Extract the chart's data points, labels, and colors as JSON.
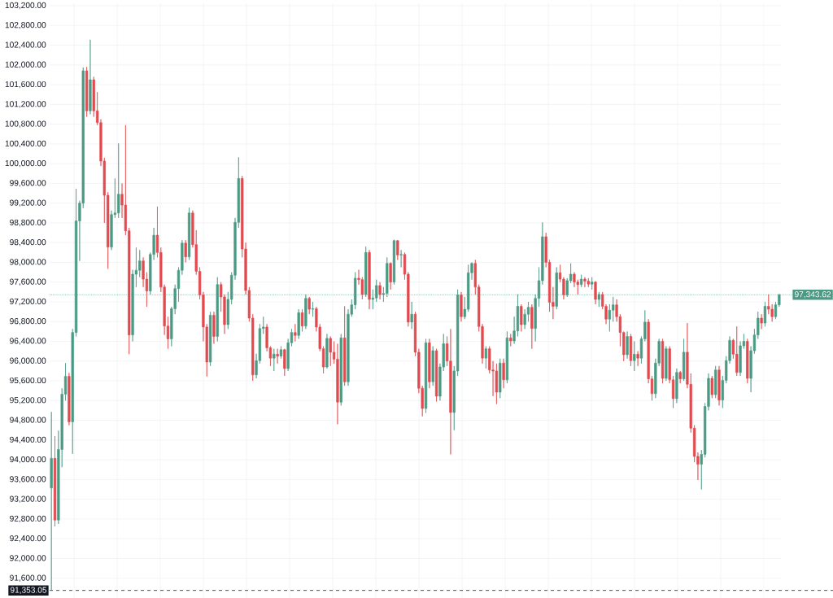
{
  "chart_data": {
    "type": "candlestick",
    "categories": [
      null,
      null,
      null,
      null,
      null,
      null,
      null,
      null,
      null,
      null,
      null,
      null,
      null,
      null,
      null,
      null,
      null,
      null,
      null,
      null,
      null,
      null,
      null,
      null,
      null,
      null,
      null,
      null,
      null,
      null,
      null,
      null,
      null,
      null,
      null,
      null,
      null,
      null,
      null,
      null,
      null,
      null,
      null,
      null,
      null,
      null,
      null,
      null,
      null,
      null,
      null,
      null,
      null,
      null,
      null,
      null,
      null,
      null,
      null,
      null,
      null,
      null,
      null,
      null,
      null,
      null,
      null,
      null,
      null,
      null,
      null,
      null,
      null,
      null,
      null,
      null,
      null,
      null,
      null,
      null,
      null,
      null,
      null,
      null,
      null,
      null,
      null,
      null,
      null,
      null,
      null,
      null,
      null,
      null,
      null,
      null,
      null,
      null,
      null,
      null,
      null,
      null,
      null,
      null,
      null,
      null,
      null,
      null,
      null,
      null,
      null,
      null,
      null,
      null,
      null,
      null,
      null,
      null,
      null,
      null,
      null,
      null,
      null,
      null,
      null,
      null,
      null,
      null,
      null,
      null,
      null,
      null,
      null,
      null,
      null,
      null,
      null,
      null,
      null,
      null,
      null,
      null,
      null,
      null,
      null,
      null,
      null,
      null,
      null,
      null,
      null,
      null,
      null,
      null,
      null,
      null,
      null,
      null,
      null,
      null,
      null,
      null,
      null,
      null,
      null,
      null,
      null,
      null,
      null,
      null,
      null,
      null,
      null,
      null,
      null,
      null,
      null,
      null,
      null,
      null,
      null,
      null,
      null,
      null,
      null,
      null,
      null,
      null,
      null,
      null,
      null,
      null,
      null,
      null,
      null,
      null,
      null,
      null,
      null,
      null,
      null,
      null,
      null,
      null,
      null,
      null,
      null
    ],
    "ohlc": [
      [
        93430,
        94970,
        91360,
        94030
      ],
      [
        94030,
        94480,
        92650,
        92780
      ],
      [
        92780,
        94590,
        92700,
        94210
      ],
      [
        94210,
        95450,
        93850,
        95330
      ],
      [
        95330,
        95960,
        95200,
        95690
      ],
      [
        95690,
        95760,
        94700,
        94770
      ],
      [
        94770,
        96650,
        94120,
        96580
      ],
      [
        96580,
        99490,
        96500,
        98840
      ],
      [
        98840,
        99250,
        98030,
        99200
      ],
      [
        99200,
        101950,
        99100,
        101880
      ],
      [
        101880,
        101960,
        100950,
        101070
      ],
      [
        101070,
        102510,
        101000,
        101700
      ],
      [
        101700,
        101760,
        100950,
        101070
      ],
      [
        101070,
        101450,
        100780,
        100830
      ],
      [
        100830,
        100900,
        99950,
        100050
      ],
      [
        100050,
        100120,
        98800,
        99360
      ],
      [
        99360,
        99420,
        97870,
        98310
      ],
      [
        98310,
        99050,
        98250,
        98970
      ],
      [
        98970,
        99700,
        98900,
        99000
      ],
      [
        99000,
        100410,
        98900,
        99380
      ],
      [
        99380,
        99600,
        98900,
        99160
      ],
      [
        99160,
        100780,
        98550,
        98640
      ],
      [
        98640,
        98700,
        96140,
        96530
      ],
      [
        96530,
        97850,
        96400,
        97760
      ],
      [
        97760,
        98300,
        97500,
        97840
      ],
      [
        97840,
        98250,
        97700,
        98030
      ],
      [
        98030,
        98100,
        97500,
        97660
      ],
      [
        97660,
        97800,
        97100,
        97420
      ],
      [
        97420,
        98200,
        97350,
        98160
      ],
      [
        98160,
        98700,
        98050,
        98550
      ],
      [
        98550,
        99130,
        98100,
        98200
      ],
      [
        98200,
        98300,
        97400,
        97500
      ],
      [
        97500,
        97550,
        96530,
        96710
      ],
      [
        96710,
        96900,
        96250,
        96450
      ],
      [
        96450,
        97100,
        96300,
        97060
      ],
      [
        97060,
        97550,
        96950,
        97470
      ],
      [
        97470,
        97900,
        97200,
        97840
      ],
      [
        97840,
        98450,
        97750,
        98390
      ],
      [
        98390,
        98450,
        98000,
        98110
      ],
      [
        98110,
        99110,
        98050,
        99000
      ],
      [
        99000,
        99050,
        98300,
        98360
      ],
      [
        98360,
        98650,
        97750,
        97820
      ],
      [
        97820,
        97900,
        97250,
        97340
      ],
      [
        97340,
        97400,
        96400,
        96690
      ],
      [
        96690,
        96750,
        95690,
        95980
      ],
      [
        95980,
        97000,
        95900,
        96930
      ],
      [
        96930,
        97000,
        96350,
        96500
      ],
      [
        96500,
        97700,
        96400,
        97550
      ],
      [
        97550,
        97600,
        97000,
        97300
      ],
      [
        97300,
        97350,
        96550,
        96740
      ],
      [
        96740,
        97400,
        96650,
        97250
      ],
      [
        97250,
        97800,
        97150,
        97740
      ],
      [
        97740,
        98900,
        97650,
        98810
      ],
      [
        98810,
        100130,
        98700,
        99700
      ],
      [
        99700,
        99750,
        98100,
        98270
      ],
      [
        98270,
        98400,
        97350,
        97430
      ],
      [
        97430,
        97500,
        96800,
        96870
      ],
      [
        96870,
        96950,
        95600,
        95720
      ],
      [
        95720,
        96150,
        95650,
        96010
      ],
      [
        96010,
        96750,
        95950,
        96660
      ],
      [
        96660,
        96900,
        96550,
        96690
      ],
      [
        96690,
        96750,
        96200,
        96270
      ],
      [
        96270,
        96300,
        95900,
        96060
      ],
      [
        96060,
        96250,
        95800,
        96140
      ],
      [
        96140,
        96250,
        95950,
        96100
      ],
      [
        96100,
        96300,
        96050,
        96230
      ],
      [
        96230,
        96250,
        95700,
        95850
      ],
      [
        95850,
        96450,
        95800,
        96370
      ],
      [
        96370,
        96650,
        96300,
        96580
      ],
      [
        96580,
        96750,
        96400,
        96520
      ],
      [
        96520,
        97050,
        96450,
        96980
      ],
      [
        96980,
        97050,
        96600,
        96710
      ],
      [
        96710,
        97350,
        96650,
        97270
      ],
      [
        97270,
        97300,
        96950,
        97050
      ],
      [
        97050,
        97200,
        96900,
        97060
      ],
      [
        97060,
        97100,
        96600,
        96690
      ],
      [
        96690,
        96750,
        96200,
        96250
      ],
      [
        96250,
        96300,
        95750,
        95880
      ],
      [
        95880,
        96550,
        95850,
        96460
      ],
      [
        96460,
        96500,
        95900,
        96180
      ],
      [
        96180,
        96400,
        95950,
        96040
      ],
      [
        96040,
        96350,
        94720,
        95170
      ],
      [
        95170,
        96550,
        95100,
        96470
      ],
      [
        96470,
        97110,
        95500,
        95580
      ],
      [
        95580,
        97050,
        95500,
        96950
      ],
      [
        96950,
        97250,
        96900,
        97140
      ],
      [
        97140,
        97800,
        97050,
        97680
      ],
      [
        97680,
        97850,
        97550,
        97650
      ],
      [
        97650,
        97700,
        97250,
        97350
      ],
      [
        97350,
        98320,
        97300,
        98200
      ],
      [
        98200,
        98250,
        97050,
        97250
      ],
      [
        97250,
        97450,
        97050,
        97280
      ],
      [
        97280,
        97650,
        97200,
        97530
      ],
      [
        97530,
        97600,
        97250,
        97350
      ],
      [
        97350,
        97500,
        97200,
        97370
      ],
      [
        97370,
        98100,
        97300,
        97980
      ],
      [
        97980,
        98000,
        97450,
        97600
      ],
      [
        97600,
        98460,
        97550,
        98440
      ],
      [
        98440,
        98450,
        98050,
        98150
      ],
      [
        98150,
        98250,
        97900,
        98160
      ],
      [
        98160,
        98200,
        97650,
        97760
      ],
      [
        97760,
        97800,
        96700,
        96790
      ],
      [
        96790,
        97200,
        96650,
        96950
      ],
      [
        96950,
        97000,
        96100,
        96180
      ],
      [
        96180,
        96250,
        95350,
        95450
      ],
      [
        95450,
        95500,
        94880,
        95040
      ],
      [
        95040,
        96450,
        94950,
        96370
      ],
      [
        96370,
        96450,
        95450,
        95580
      ],
      [
        95580,
        96300,
        95500,
        96210
      ],
      [
        96210,
        96250,
        95180,
        95290
      ],
      [
        95290,
        95950,
        95200,
        95880
      ],
      [
        95880,
        96550,
        95800,
        96350
      ],
      [
        96350,
        96500,
        95900,
        96000
      ],
      [
        96000,
        96650,
        94110,
        94960
      ],
      [
        94960,
        95900,
        94600,
        95800
      ],
      [
        95800,
        97450,
        95700,
        97340
      ],
      [
        97340,
        97400,
        96800,
        96900
      ],
      [
        96900,
        97300,
        96850,
        97050
      ],
      [
        97050,
        97950,
        97000,
        97790
      ],
      [
        97790,
        98000,
        97650,
        97980
      ],
      [
        97980,
        98050,
        97350,
        97500
      ],
      [
        97500,
        97550,
        96600,
        96700
      ],
      [
        96700,
        96750,
        95950,
        96060
      ],
      [
        96060,
        96300,
        95850,
        96250
      ],
      [
        96250,
        96300,
        95750,
        95820
      ],
      [
        95820,
        96000,
        95290,
        95800
      ],
      [
        95800,
        95950,
        95130,
        95370
      ],
      [
        95370,
        96050,
        95250,
        95960
      ],
      [
        95960,
        96050,
        95450,
        95620
      ],
      [
        95620,
        96600,
        95550,
        96470
      ],
      [
        96470,
        96550,
        96300,
        96410
      ],
      [
        96410,
        96900,
        96350,
        96610
      ],
      [
        96610,
        97350,
        96500,
        97110
      ],
      [
        97110,
        97150,
        96600,
        96740
      ],
      [
        96740,
        97050,
        96650,
        96950
      ],
      [
        96950,
        97200,
        96800,
        97090
      ],
      [
        97090,
        97150,
        96250,
        96660
      ],
      [
        96660,
        97350,
        96400,
        97270
      ],
      [
        97270,
        97900,
        97100,
        97630
      ],
      [
        97630,
        98810,
        97550,
        98520
      ],
      [
        98520,
        98600,
        97900,
        98000
      ],
      [
        98000,
        98050,
        97000,
        97190
      ],
      [
        97190,
        97500,
        96850,
        97110
      ],
      [
        97110,
        97900,
        97050,
        97790
      ],
      [
        97790,
        97950,
        97600,
        97660
      ],
      [
        97660,
        97700,
        97250,
        97340
      ],
      [
        97340,
        97680,
        97300,
        97630
      ],
      [
        97630,
        97980,
        97580,
        97760
      ],
      [
        97760,
        97800,
        97500,
        97600
      ],
      [
        97600,
        97650,
        97350,
        97550
      ],
      [
        97550,
        97750,
        97500,
        97660
      ],
      [
        97660,
        97700,
        97500,
        97620
      ],
      [
        97620,
        97680,
        97500,
        97560
      ],
      [
        97560,
        97700,
        97450,
        97600
      ],
      [
        97600,
        97620,
        97150,
        97250
      ],
      [
        97250,
        97400,
        97100,
        97350
      ],
      [
        97350,
        97400,
        97050,
        97110
      ],
      [
        97110,
        97150,
        96750,
        96850
      ],
      [
        96850,
        97150,
        96600,
        97030
      ],
      [
        97030,
        97300,
        96800,
        97140
      ],
      [
        97140,
        97250,
        96800,
        96900
      ],
      [
        96900,
        96950,
        96300,
        96580
      ],
      [
        96580,
        96600,
        96000,
        96130
      ],
      [
        96130,
        96600,
        96050,
        96500
      ],
      [
        96500,
        96550,
        95900,
        96010
      ],
      [
        96010,
        96400,
        95800,
        96140
      ],
      [
        96140,
        96200,
        95900,
        96060
      ],
      [
        96060,
        96500,
        95950,
        96450
      ],
      [
        96450,
        97030,
        96400,
        96790
      ],
      [
        96790,
        96850,
        95550,
        95640
      ],
      [
        95640,
        95700,
        95200,
        95340
      ],
      [
        95340,
        96050,
        95250,
        95960
      ],
      [
        95960,
        96450,
        95900,
        96400
      ],
      [
        96400,
        96450,
        95550,
        95650
      ],
      [
        95650,
        96300,
        95600,
        96250
      ],
      [
        96250,
        96300,
        95550,
        95620
      ],
      [
        95620,
        95700,
        95050,
        95240
      ],
      [
        95240,
        95850,
        95150,
        95770
      ],
      [
        95770,
        95800,
        95550,
        95640
      ],
      [
        95640,
        96450,
        95600,
        96180
      ],
      [
        96180,
        96770,
        95450,
        95530
      ],
      [
        95530,
        95750,
        94550,
        94640
      ],
      [
        94640,
        94700,
        93950,
        94070
      ],
      [
        94070,
        94150,
        93590,
        93910
      ],
      [
        93910,
        94200,
        93400,
        94110
      ],
      [
        94110,
        95150,
        94050,
        95080
      ],
      [
        95080,
        95750,
        95000,
        95650
      ],
      [
        95650,
        95700,
        95250,
        95320
      ],
      [
        95320,
        95900,
        95250,
        95820
      ],
      [
        95820,
        95900,
        95100,
        95210
      ],
      [
        95210,
        95700,
        95050,
        95610
      ],
      [
        95610,
        96100,
        95550,
        96010
      ],
      [
        96010,
        96500,
        95950,
        96420
      ],
      [
        96420,
        96450,
        96050,
        96140
      ],
      [
        96140,
        96700,
        95700,
        95770
      ],
      [
        95770,
        96400,
        95700,
        96310
      ],
      [
        96310,
        96550,
        96250,
        96400
      ],
      [
        96400,
        96450,
        95550,
        95650
      ],
      [
        95650,
        96300,
        95370,
        96210
      ],
      [
        96210,
        96650,
        96150,
        96530
      ],
      [
        96530,
        97000,
        96450,
        96870
      ],
      [
        96870,
        96950,
        96650,
        96770
      ],
      [
        96770,
        97200,
        96700,
        97110
      ],
      [
        97110,
        97350,
        96950,
        97050
      ],
      [
        97050,
        97150,
        96800,
        96900
      ],
      [
        96900,
        97200,
        96850,
        97140
      ],
      [
        97140,
        97360,
        97100,
        97343.62
      ]
    ],
    "colors": [
      "#4a9a84",
      "#e24a4f",
      "#4a9a84",
      "#4a9a84",
      "#4a9a84",
      "#e24a4f",
      "#4a9a84",
      "#4a9a84",
      "#4a9a84",
      "#4a9a84",
      "#e24a4f",
      "#4a9a84",
      "#e24a4f",
      "#e24a4f",
      "#e24a4f",
      "#e24a4f",
      "#e24a4f",
      "#4a9a84",
      "#4a9a84",
      "#4a9a84",
      "#e24a4f",
      "#e24a4f",
      "#e24a4f",
      "#4a9a84",
      "#4a9a84",
      "#4a9a84",
      "#e24a4f",
      "#e24a4f",
      "#4a9a84",
      "#4a9a84",
      "#e24a4f",
      "#e24a4f",
      "#e24a4f",
      "#e24a4f",
      "#4a9a84",
      "#4a9a84",
      "#4a9a84",
      "#4a9a84",
      "#e24a4f",
      "#4a9a84",
      "#e24a4f",
      "#e24a4f",
      "#e24a4f",
      "#e24a4f",
      "#e24a4f",
      "#4a9a84",
      "#e24a4f",
      "#4a9a84",
      "#e24a4f",
      "#e24a4f",
      "#4a9a84",
      "#4a9a84",
      "#4a9a84",
      "#4a9a84",
      "#e24a4f",
      "#e24a4f",
      "#e24a4f",
      "#e24a4f",
      "#4a9a84",
      "#4a9a84",
      "#4a9a84",
      "#e24a4f",
      "#e24a4f",
      "#4a9a84",
      "#e24a4f",
      "#4a9a84",
      "#e24a4f",
      "#4a9a84",
      "#4a9a84",
      "#e24a4f",
      "#4a9a84",
      "#e24a4f",
      "#4a9a84",
      "#e24a4f",
      "#4a9a84",
      "#e24a4f",
      "#e24a4f",
      "#e24a4f",
      "#4a9a84",
      "#e24a4f",
      "#e24a4f",
      "#e24a4f",
      "#4a9a84",
      "#e24a4f",
      "#4a9a84",
      "#4a9a84",
      "#4a9a84",
      "#e24a4f",
      "#e24a4f",
      "#4a9a84",
      "#e24a4f",
      "#4a9a84",
      "#4a9a84",
      "#e24a4f",
      "#4a9a84",
      "#4a9a84",
      "#e24a4f",
      "#4a9a84",
      "#e24a4f",
      "#4a9a84",
      "#e24a4f",
      "#e24a4f",
      "#4a9a84",
      "#e24a4f",
      "#e24a4f",
      "#e24a4f",
      "#4a9a84",
      "#e24a4f",
      "#4a9a84",
      "#e24a4f",
      "#4a9a84",
      "#4a9a84",
      "#e24a4f",
      "#e24a4f",
      "#4a9a84",
      "#4a9a84",
      "#e24a4f",
      "#4a9a84",
      "#4a9a84",
      "#4a9a84",
      "#e24a4f",
      "#e24a4f",
      "#e24a4f",
      "#4a9a84",
      "#e24a4f",
      "#e24a4f",
      "#e24a4f",
      "#4a9a84",
      "#e24a4f",
      "#4a9a84",
      "#e24a4f",
      "#4a9a84",
      "#4a9a84",
      "#e24a4f",
      "#4a9a84",
      "#4a9a84",
      "#e24a4f",
      "#4a9a84",
      "#4a9a84",
      "#4a9a84",
      "#e24a4f",
      "#e24a4f",
      "#e24a4f",
      "#4a9a84",
      "#e24a4f",
      "#e24a4f",
      "#4a9a84",
      "#4a9a84",
      "#e24a4f",
      "#e24a4f",
      "#4a9a84",
      "#e24a4f",
      "#e24a4f",
      "#4a9a84",
      "#e24a4f",
      "#4a9a84",
      "#e24a4f",
      "#e24a4f",
      "#4a9a84",
      "#4a9a84",
      "#e24a4f",
      "#e24a4f",
      "#e24a4f",
      "#4a9a84",
      "#e24a4f",
      "#4a9a84",
      "#e24a4f",
      "#4a9a84",
      "#4a9a84",
      "#e24a4f",
      "#e24a4f",
      "#4a9a84",
      "#4a9a84",
      "#e24a4f",
      "#4a9a84",
      "#e24a4f",
      "#e24a4f",
      "#4a9a84",
      "#e24a4f",
      "#4a9a84",
      "#e24a4f",
      "#e24a4f",
      "#e24a4f",
      "#e24a4f",
      "#4a9a84",
      "#4a9a84",
      "#4a9a84",
      "#e24a4f",
      "#4a9a84",
      "#e24a4f",
      "#4a9a84",
      "#4a9a84",
      "#4a9a84",
      "#e24a4f",
      "#e24a4f",
      "#4a9a84",
      "#4a9a84",
      "#e24a4f",
      "#4a9a84",
      "#4a9a84",
      "#4a9a84",
      "#e24a4f",
      "#4a9a84",
      "#e24a4f",
      "#e24a4f",
      "#4a9a84",
      "#4a9a84"
    ],
    "ylim": [
      91200,
      103250
    ],
    "yticks": [
      {
        "value": 91600,
        "label": "91,600.00"
      },
      {
        "value": 92000,
        "label": "92,000.00"
      },
      {
        "value": 92400,
        "label": "92,400.00"
      },
      {
        "value": 92800,
        "label": "92,800.00"
      },
      {
        "value": 93200,
        "label": "93,200.00"
      },
      {
        "value": 93600,
        "label": "93,600.00"
      },
      {
        "value": 94000,
        "label": "94,000.00"
      },
      {
        "value": 94400,
        "label": "94,400.00"
      },
      {
        "value": 94800,
        "label": "94,800.00"
      },
      {
        "value": 95200,
        "label": "95,200.00"
      },
      {
        "value": 95600,
        "label": "95,600.00"
      },
      {
        "value": 96000,
        "label": "96,000.00"
      },
      {
        "value": 96400,
        "label": "96,400.00"
      },
      {
        "value": 96800,
        "label": "96,800.00"
      },
      {
        "value": 97200,
        "label": "97,200.00"
      },
      {
        "value": 97600,
        "label": "97,600.00"
      },
      {
        "value": 98000,
        "label": "98,000.00"
      },
      {
        "value": 98400,
        "label": "98,400.00"
      },
      {
        "value": 98800,
        "label": "98,800.00"
      },
      {
        "value": 99200,
        "label": "99,200.00"
      },
      {
        "value": 99600,
        "label": "99,600.00"
      },
      {
        "value": 100000,
        "label": "100,000.00"
      },
      {
        "value": 100400,
        "label": "100,400.00"
      },
      {
        "value": 100800,
        "label": "100,800.00"
      },
      {
        "value": 101200,
        "label": "101,200.00"
      },
      {
        "value": 101600,
        "label": "101,600.00"
      },
      {
        "value": 102000,
        "label": "102,000.00"
      },
      {
        "value": 102400,
        "label": "102,400.00"
      },
      {
        "value": 102800,
        "label": "102,800.00"
      },
      {
        "value": 103200,
        "label": "103,200.00"
      }
    ],
    "grid": true,
    "tick_labels": "y",
    "ref_lines": [
      {
        "axis": "y",
        "value": 97343.62,
        "label": "97,343.62",
        "color": "#4a9a84",
        "line_style": "dotted"
      },
      {
        "axis": "y",
        "value": 91353.05,
        "label": "91,353.05",
        "color": "#131722",
        "line_style": "dashed"
      }
    ]
  }
}
